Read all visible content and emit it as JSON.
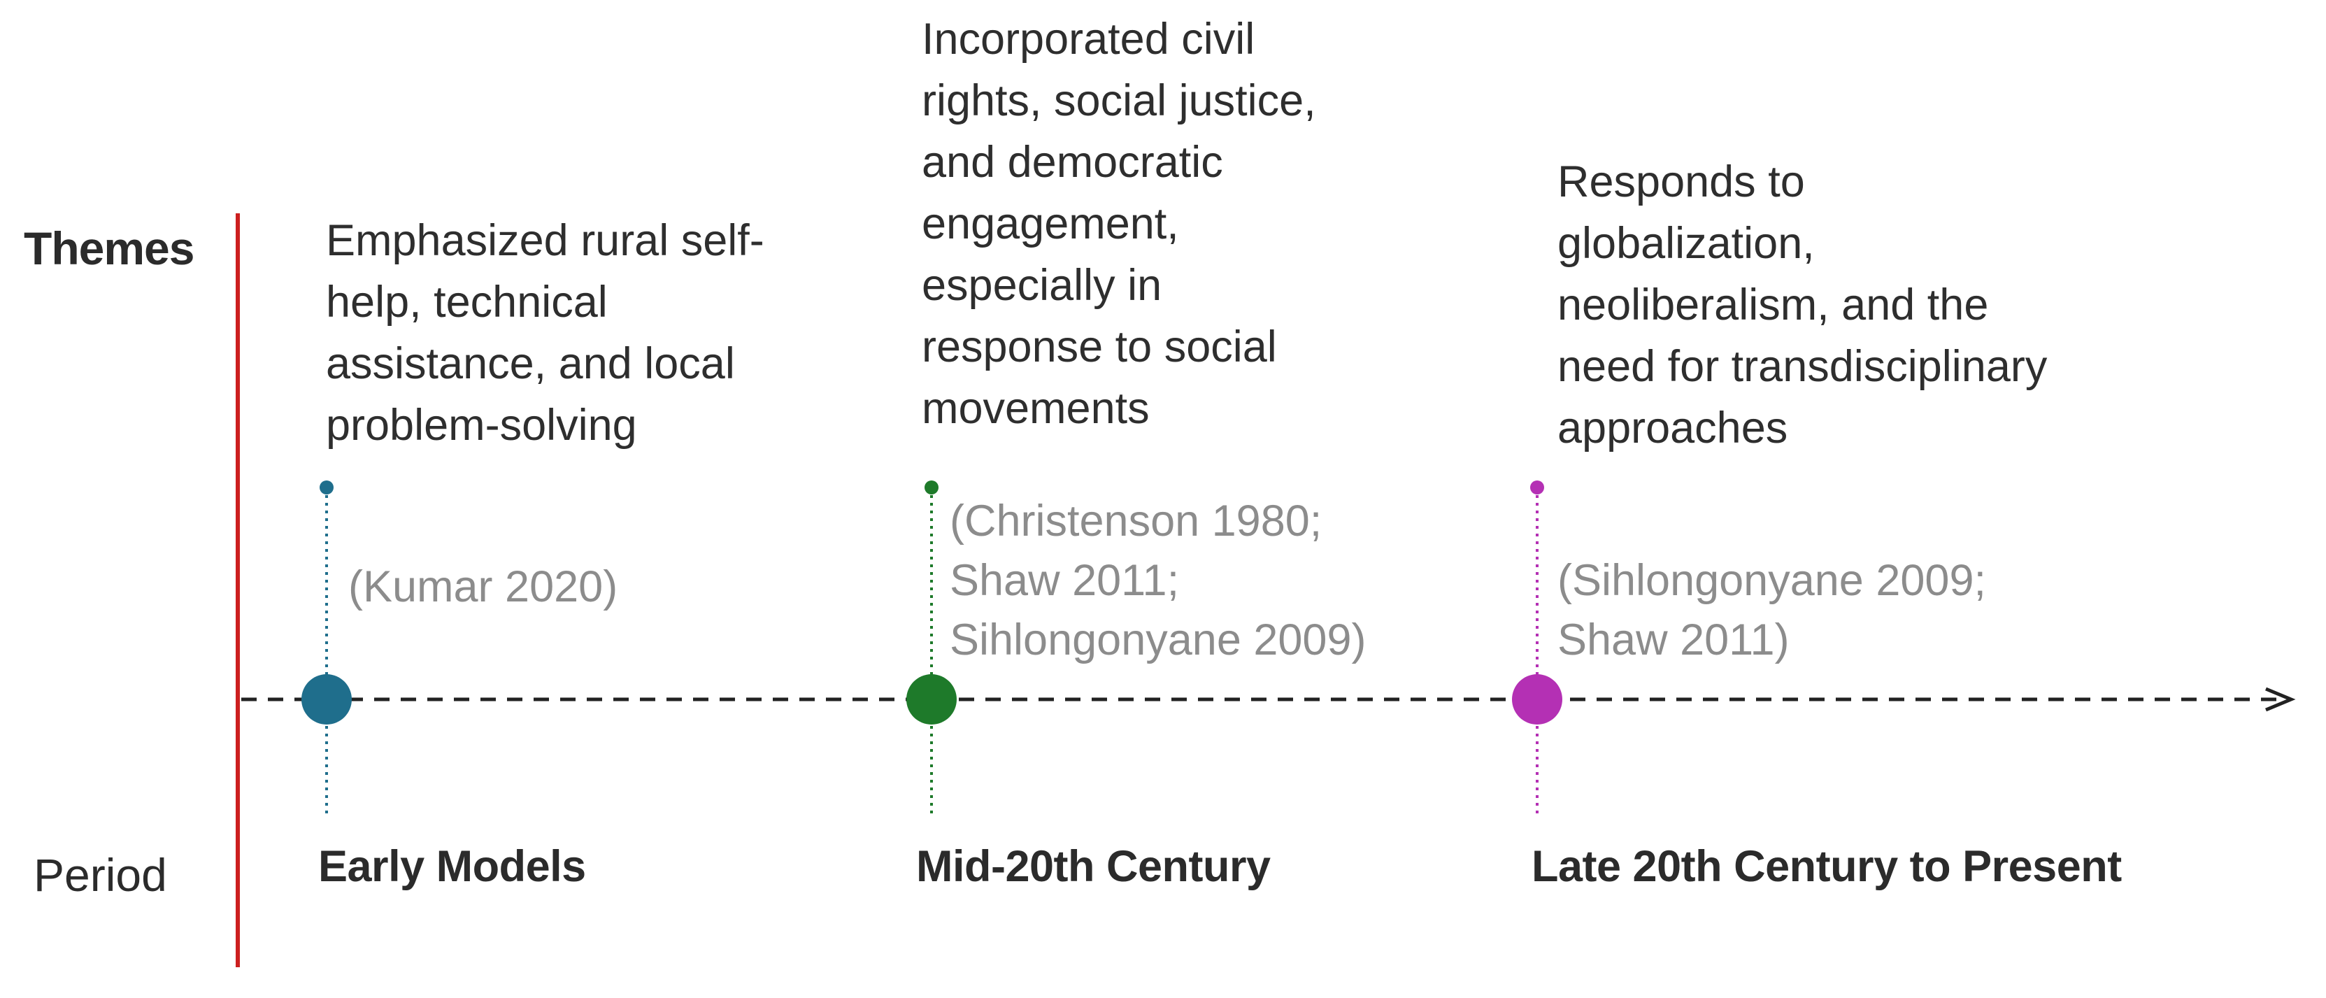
{
  "row_labels": {
    "themes": "Themes",
    "period": "Period"
  },
  "colors": {
    "divider": "#cc1f1f",
    "axis": "#222222",
    "early": "#1f6e8c",
    "mid": "#1e7a2a",
    "late": "#b430b4"
  },
  "events": [
    {
      "period": "Early Models",
      "theme": "Emphasized rural self-\nhelp, technical\nassistance, and local\nproblem-solving",
      "citation": "(Kumar 2020)",
      "color": "#1f6e8c"
    },
    {
      "period": "Mid-20th Century",
      "theme": "Incorporated civil\nrights, social justice,\nand democratic\nengagement,\nespecially in\nresponse to social\nmovements",
      "citation": "(Christenson 1980;\nShaw 2011;\nSihlongonyane 2009)",
      "color": "#1e7a2a"
    },
    {
      "period": "Late 20th Century to Present",
      "theme": "Responds to\nglobalization,\nneoliberalism, and the\nneed for transdisciplinary\napproaches",
      "citation": "(Sihlongonyane 2009;\nShaw 2011)",
      "color": "#b430b4"
    }
  ]
}
